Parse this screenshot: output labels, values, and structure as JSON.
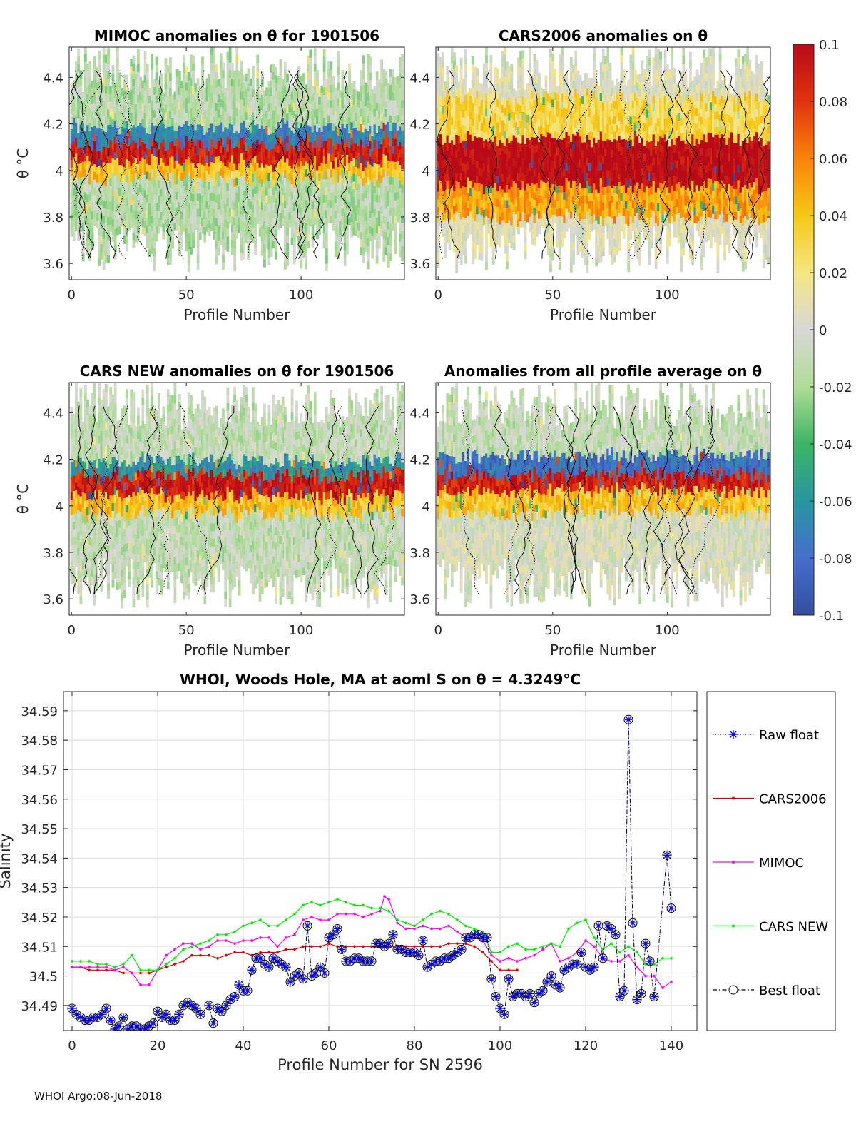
{
  "footer": "WHOI Argo:08-Jun-2018",
  "colorbar": {
    "ticks": [
      "0.1",
      "0.08",
      "0.06",
      "0.04",
      "0.02",
      "0",
      "-0.02",
      "-0.04",
      "-0.06",
      "-0.08",
      "-0.1"
    ],
    "range": [
      -0.1,
      0.1
    ]
  },
  "chart_data": [
    {
      "type": "heatmap",
      "title": "MIMOC anomalies on θ  for 1901506",
      "xlabel": "Profile Number",
      "ylabel": "θ °C",
      "xlim": [
        -1,
        145
      ],
      "ylim": [
        3.53,
        4.53
      ],
      "xticks": [
        "0",
        "50",
        "100"
      ],
      "yticks": [
        "3.6",
        "3.8",
        "4",
        "4.2",
        "4.4"
      ],
      "band_summary": [
        {
          "theta": [
            3.6,
            3.95
          ],
          "anomaly": -0.015
        },
        {
          "theta": [
            3.95,
            4.02
          ],
          "anomaly": 0.04
        },
        {
          "theta": [
            4.02,
            4.1
          ],
          "anomaly": 0.09
        },
        {
          "theta": [
            4.1,
            4.17
          ],
          "anomaly": -0.07
        },
        {
          "theta": [
            4.17,
            4.5
          ],
          "anomaly": -0.015
        }
      ]
    },
    {
      "type": "heatmap",
      "title": "CARS2006 anomalies on θ",
      "xlabel": "Profile Number",
      "ylabel": "",
      "xlim": [
        -1,
        145
      ],
      "ylim": [
        3.53,
        4.53
      ],
      "xticks": [
        "0",
        "50",
        "100"
      ],
      "yticks": [
        "3.6",
        "3.8",
        "4",
        "4.2",
        "4.4"
      ],
      "band_summary": [
        {
          "theta": [
            3.6,
            3.78
          ],
          "anomaly": 0.005
        },
        {
          "theta": [
            3.78,
            3.92
          ],
          "anomaly": 0.05
        },
        {
          "theta": [
            3.92,
            4.12
          ],
          "anomaly": 0.1
        },
        {
          "theta": [
            4.12,
            4.3
          ],
          "anomaly": 0.03
        },
        {
          "theta": [
            4.3,
            4.45
          ],
          "anomaly": 0.005
        }
      ]
    },
    {
      "type": "heatmap",
      "title": "CARS NEW anomalies on θ for 1901506",
      "xlabel": "Profile Number",
      "ylabel": "θ °C",
      "xlim": [
        -1,
        145
      ],
      "ylim": [
        3.53,
        4.53
      ],
      "xticks": [
        "0",
        "50",
        "100"
      ],
      "yticks": [
        "3.6",
        "3.8",
        "4",
        "4.2",
        "4.4"
      ],
      "band_summary": [
        {
          "theta": [
            3.6,
            3.95
          ],
          "anomaly": -0.01
        },
        {
          "theta": [
            3.95,
            4.03
          ],
          "anomaly": 0.04
        },
        {
          "theta": [
            4.03,
            4.12
          ],
          "anomaly": 0.09
        },
        {
          "theta": [
            4.12,
            4.18
          ],
          "anomaly": -0.06
        },
        {
          "theta": [
            4.18,
            4.5
          ],
          "anomaly": -0.01
        }
      ]
    },
    {
      "type": "heatmap",
      "title": "Anomalies from all profile average on θ",
      "xlabel": "Profile Number",
      "ylabel": "",
      "xlim": [
        -1,
        145
      ],
      "ylim": [
        3.53,
        4.53
      ],
      "xticks": [
        "0",
        "50",
        "100"
      ],
      "yticks": [
        "3.6",
        "3.8",
        "4",
        "4.2",
        "4.4"
      ],
      "band_summary": [
        {
          "theta": [
            3.6,
            3.95
          ],
          "anomaly": 0.0
        },
        {
          "theta": [
            3.95,
            4.05
          ],
          "anomaly": 0.04
        },
        {
          "theta": [
            4.05,
            4.12
          ],
          "anomaly": 0.09
        },
        {
          "theta": [
            4.12,
            4.2
          ],
          "anomaly": -0.08
        },
        {
          "theta": [
            4.2,
            4.45
          ],
          "anomaly": -0.01
        }
      ]
    },
    {
      "type": "line",
      "title": "WHOI, Woods Hole, MA at aoml S on θ = 4.3249°C",
      "xlabel": "Profile Number for SN 2596",
      "ylabel": "Salinity",
      "xlim": [
        -2,
        146
      ],
      "ylim": [
        34.4815,
        34.5965
      ],
      "xticks": [
        0,
        20,
        40,
        60,
        80,
        100,
        120,
        140
      ],
      "yticks": [
        "34.49",
        "34.5",
        "34.51",
        "34.52",
        "34.53",
        "34.54",
        "34.55",
        "34.56",
        "34.57",
        "34.58",
        "34.59"
      ],
      "grid": true,
      "legend_position": "outside-right",
      "series": [
        {
          "name": "Raw float",
          "color": "#0000ff",
          "x": [
            0,
            1,
            2,
            3,
            4,
            5,
            6,
            7,
            8,
            9,
            10,
            11,
            12,
            13,
            14,
            15,
            16,
            17,
            18,
            19,
            20,
            21,
            22,
            23,
            24,
            25,
            26,
            27,
            28,
            29,
            30,
            32,
            33,
            34,
            35,
            36,
            37,
            38,
            39,
            40,
            41,
            42,
            43,
            44,
            45,
            46,
            47,
            48,
            49,
            50,
            51,
            52,
            53,
            54,
            55,
            56,
            57,
            58,
            59,
            60,
            61,
            62,
            63,
            64,
            65,
            66,
            67,
            68,
            69,
            70,
            71,
            72,
            73,
            74,
            75,
            76,
            77,
            78,
            79,
            80,
            81,
            82,
            83,
            84,
            85,
            86,
            87,
            88,
            89,
            90,
            91,
            92,
            93,
            94,
            95,
            96,
            97,
            98,
            99,
            100,
            101,
            102,
            103,
            104,
            105,
            106,
            107,
            108,
            109,
            110,
            111,
            112,
            113,
            114,
            115,
            116,
            117,
            118,
            119,
            120,
            121,
            122,
            123,
            124,
            125,
            126,
            127,
            128,
            129,
            130,
            131,
            132,
            133,
            134,
            135,
            136,
            139,
            140
          ],
          "y": [
            34.489,
            34.487,
            34.486,
            34.485,
            34.485,
            34.486,
            34.486,
            34.487,
            34.489,
            34.485,
            34.482,
            34.483,
            34.486,
            34.482,
            34.483,
            34.483,
            34.482,
            34.482,
            34.483,
            34.484,
            34.488,
            34.486,
            34.487,
            34.485,
            34.485,
            34.487,
            34.49,
            34.491,
            34.49,
            34.489,
            34.487,
            34.49,
            34.484,
            34.489,
            34.488,
            34.49,
            34.492,
            34.493,
            34.497,
            34.495,
            34.495,
            34.502,
            34.506,
            34.506,
            34.504,
            34.503,
            34.506,
            34.505,
            34.504,
            34.503,
            34.498,
            34.5,
            34.501,
            34.499,
            34.517,
            34.5,
            34.501,
            34.503,
            34.501,
            34.513,
            34.514,
            34.516,
            34.509,
            34.505,
            34.505,
            34.506,
            34.506,
            34.505,
            34.505,
            34.505,
            34.511,
            34.511,
            34.51,
            34.511,
            34.514,
            34.509,
            34.509,
            34.508,
            34.508,
            34.508,
            34.507,
            34.512,
            34.503,
            34.504,
            34.505,
            34.505,
            34.506,
            34.506,
            34.507,
            34.508,
            34.509,
            34.513,
            34.513,
            34.514,
            34.514,
            34.513,
            34.513,
            34.499,
            34.493,
            34.489,
            34.487,
            34.499,
            34.493,
            34.494,
            34.494,
            34.493,
            34.494,
            34.491,
            34.494,
            34.495,
            34.498,
            34.5,
            34.497,
            34.496,
            34.502,
            34.503,
            34.504,
            34.504,
            34.508,
            34.503,
            34.502,
            34.503,
            34.517,
            34.506,
            34.517,
            34.516,
            34.514,
            34.493,
            34.495,
            34.587,
            34.518,
            34.492,
            34.494,
            34.511,
            34.505,
            34.493,
            34.541,
            34.523
          ]
        },
        {
          "name": "CARS2006",
          "color": "#e00000",
          "x": [
            0,
            2,
            4,
            6,
            8,
            10,
            12,
            14,
            16,
            18,
            20,
            22,
            24,
            26,
            28,
            30,
            32,
            34,
            36,
            38,
            40,
            42,
            44,
            46,
            48,
            50,
            52,
            54,
            56,
            58,
            60,
            62,
            64,
            66,
            68,
            70,
            72,
            74,
            76,
            78,
            80,
            82,
            84,
            86,
            88,
            90,
            92,
            94,
            96,
            98,
            100,
            102,
            104
          ],
          "y": [
            34.503,
            34.503,
            34.502,
            34.502,
            34.502,
            34.502,
            34.501,
            34.501,
            34.501,
            34.501,
            34.502,
            34.503,
            34.504,
            34.505,
            34.507,
            34.507,
            34.507,
            34.506,
            34.507,
            34.508,
            34.508,
            34.507,
            34.508,
            34.508,
            34.508,
            34.509,
            34.509,
            34.51,
            34.51,
            34.51,
            34.511,
            34.51,
            34.51,
            34.51,
            34.51,
            34.51,
            34.51,
            34.51,
            34.51,
            34.51,
            34.51,
            34.51,
            34.51,
            34.51,
            34.511,
            34.511,
            34.511,
            34.51,
            34.508,
            34.505,
            34.502,
            34.502,
            34.502
          ]
        },
        {
          "name": "MIMOC",
          "color": "#ff00ff",
          "x": [
            0,
            2,
            4,
            6,
            8,
            10,
            12,
            14,
            16,
            18,
            20,
            22,
            24,
            26,
            28,
            30,
            32,
            34,
            36,
            38,
            40,
            42,
            44,
            46,
            48,
            50,
            52,
            54,
            56,
            58,
            60,
            62,
            64,
            66,
            68,
            70,
            72,
            73,
            74,
            76,
            78,
            80,
            82,
            84,
            86,
            88,
            90,
            92,
            94,
            96,
            98,
            100,
            102,
            104,
            106,
            108,
            110,
            112,
            114,
            116,
            118,
            120,
            122,
            124,
            126,
            128,
            130,
            132,
            134,
            136,
            138,
            140
          ],
          "y": [
            34.503,
            34.503,
            34.503,
            34.503,
            34.503,
            34.502,
            34.503,
            34.501,
            34.497,
            34.497,
            34.502,
            34.507,
            34.509,
            34.511,
            34.511,
            34.509,
            34.51,
            34.512,
            34.512,
            34.511,
            34.512,
            34.512,
            34.513,
            34.513,
            34.51,
            34.513,
            34.514,
            34.519,
            34.52,
            34.519,
            34.519,
            34.521,
            34.521,
            34.521,
            34.52,
            34.521,
            34.522,
            34.527,
            34.526,
            34.518,
            34.516,
            34.516,
            34.517,
            34.516,
            34.516,
            34.517,
            34.515,
            34.513,
            34.513,
            34.512,
            34.507,
            34.505,
            34.506,
            34.505,
            34.506,
            34.507,
            34.509,
            34.511,
            34.505,
            34.506,
            34.508,
            34.512,
            34.51,
            34.506,
            34.505,
            34.505,
            34.507,
            34.503,
            34.5,
            34.5,
            34.496,
            34.498
          ]
        },
        {
          "name": "CARS NEW",
          "color": "#00ee00",
          "x": [
            0,
            2,
            4,
            6,
            8,
            10,
            12,
            14,
            16,
            18,
            20,
            22,
            24,
            26,
            28,
            30,
            32,
            34,
            36,
            38,
            40,
            42,
            44,
            46,
            48,
            50,
            52,
            54,
            56,
            58,
            60,
            62,
            64,
            66,
            68,
            70,
            72,
            74,
            76,
            78,
            80,
            82,
            84,
            86,
            88,
            90,
            92,
            94,
            96,
            98,
            100,
            102,
            104,
            106,
            108,
            110,
            112,
            114,
            116,
            118,
            120,
            122,
            124,
            126,
            128,
            130,
            132,
            134,
            136,
            138,
            140
          ],
          "y": [
            34.505,
            34.505,
            34.505,
            34.504,
            34.504,
            34.503,
            34.504,
            34.507,
            34.502,
            34.502,
            34.502,
            34.504,
            34.506,
            34.509,
            34.51,
            34.511,
            34.512,
            34.514,
            34.514,
            34.515,
            34.517,
            34.518,
            34.519,
            34.517,
            34.517,
            34.519,
            34.521,
            34.524,
            34.525,
            34.524,
            34.525,
            34.526,
            34.525,
            34.524,
            34.524,
            34.523,
            34.523,
            34.522,
            34.519,
            34.518,
            34.517,
            34.519,
            34.521,
            34.522,
            34.521,
            34.519,
            34.517,
            34.516,
            34.515,
            34.508,
            34.508,
            34.51,
            34.511,
            34.509,
            34.509,
            34.51,
            34.511,
            34.51,
            34.516,
            34.518,
            34.519,
            34.513,
            34.509,
            34.511,
            34.508,
            34.51,
            34.508,
            34.504,
            34.504,
            34.506,
            34.506
          ]
        },
        {
          "name": "Best float",
          "color": "#000000",
          "x_same_as": "Raw float",
          "marker": "open-circle"
        }
      ]
    }
  ]
}
